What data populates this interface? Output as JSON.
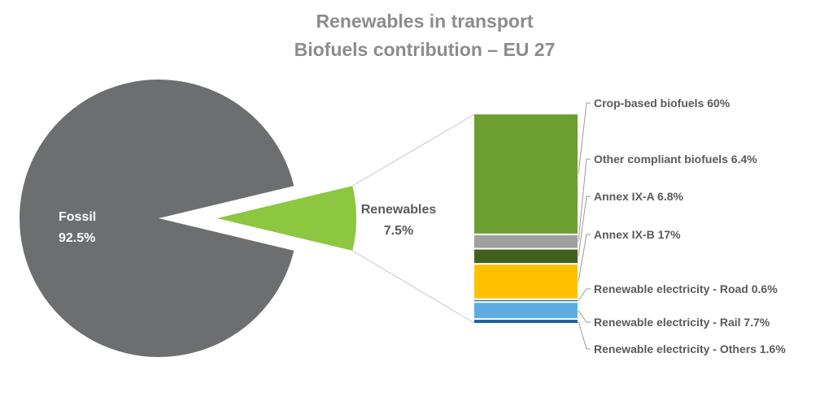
{
  "chart_data": {
    "type": "pie",
    "title": "Renewables in transport",
    "subtitle": "Biofuels contribution – EU 27",
    "pie": {
      "slices": [
        {
          "name": "Fossil",
          "value": 92.5,
          "label": "92.5%",
          "color": "#6d6e70"
        },
        {
          "name": "Renewables",
          "value": 7.5,
          "label": "7.5%",
          "color": "#8dc63f"
        }
      ]
    },
    "breakdown": {
      "type": "stacked-bar",
      "of": "Renewables",
      "segments": [
        {
          "name": "Crop-based biofuels",
          "value": 60,
          "label": "Crop-based biofuels 60%",
          "color": "#6c9f2f"
        },
        {
          "name": "Other compliant biofuels",
          "value": 6.4,
          "label": "Other compliant biofuels 6.4%",
          "color": "#a0a0a0"
        },
        {
          "name": "Annex IX-A",
          "value": 6.8,
          "label": "Annex IX-A 6.8%",
          "color": "#41601e"
        },
        {
          "name": "Annex IX-B",
          "value": 17,
          "label": "Annex IX-B 17%",
          "color": "#ffc000"
        },
        {
          "name": "Renewable electricity - Road",
          "value": 0.6,
          "label": "Renewable electricity - Road 0.6%",
          "color": "#2e74b5"
        },
        {
          "name": "Renewable electricity - Rail",
          "value": 7.7,
          "label": "Renewable electricity - Rail 7.7%",
          "color": "#5dade2"
        },
        {
          "name": "Renewable electricity - Others",
          "value": 1.6,
          "label": "Renewable electricity - Others 1.6%",
          "color": "#1f5fa0"
        }
      ]
    }
  }
}
